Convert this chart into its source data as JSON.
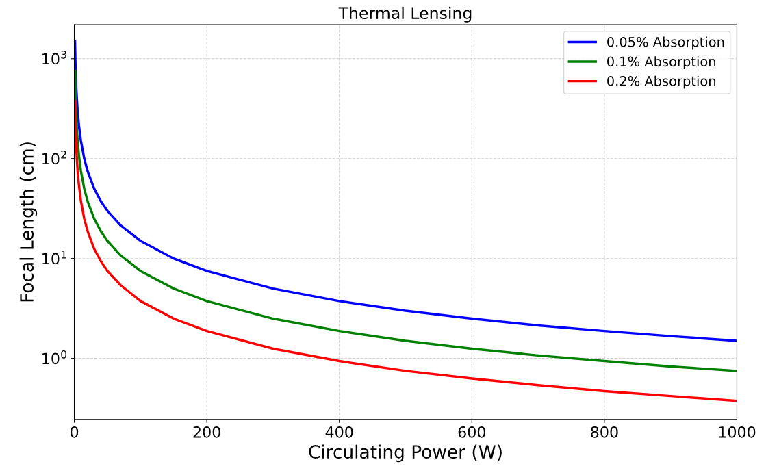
{
  "chart_data": {
    "type": "line",
    "title": "Thermal Lensing",
    "xlabel": "Circulating Power (W)",
    "ylabel": "Focal Length (cm)",
    "x": [
      1,
      2,
      3,
      5,
      7,
      10,
      15,
      20,
      30,
      40,
      50,
      70,
      100,
      150,
      200,
      300,
      400,
      500,
      600,
      700,
      800,
      900,
      1000
    ],
    "series": [
      {
        "name": "0.05% Absorption",
        "color": "#0000ff",
        "values": [
          1500,
          750,
          500,
          300,
          214,
          150,
          100,
          75,
          50,
          37.5,
          30,
          21.4,
          15,
          10,
          7.5,
          5,
          3.75,
          3,
          2.5,
          2.14,
          1.88,
          1.67,
          1.5
        ]
      },
      {
        "name": "0.1% Absorption",
        "color": "#008000",
        "values": [
          750,
          375,
          250,
          150,
          107,
          75,
          50,
          37.5,
          25,
          18.8,
          15,
          10.7,
          7.5,
          5,
          3.75,
          2.5,
          1.88,
          1.5,
          1.25,
          1.07,
          0.94,
          0.83,
          0.75
        ]
      },
      {
        "name": "0.2% Absorption",
        "color": "#ff0000",
        "values": [
          375,
          188,
          125,
          75,
          54,
          37.5,
          25,
          18.8,
          12.5,
          9.4,
          7.5,
          5.4,
          3.75,
          2.5,
          1.88,
          1.25,
          0.94,
          0.75,
          0.63,
          0.54,
          0.47,
          0.42,
          0.375
        ]
      }
    ],
    "log": "y",
    "xlim": [
      0,
      1000
    ],
    "xticks": [
      0,
      200,
      400,
      600,
      800,
      1000
    ],
    "ylim": [
      0.245,
      2190
    ],
    "yticks": [
      {
        "value": 1,
        "label": "10$^{0}$"
      },
      {
        "value": 10,
        "label": "10$^{1}$"
      },
      {
        "value": 100,
        "label": "10$^{2}$"
      },
      {
        "value": 1000,
        "label": "10$^{3}$"
      }
    ],
    "grid": true,
    "legend": "top right",
    "line_style": "solid"
  }
}
